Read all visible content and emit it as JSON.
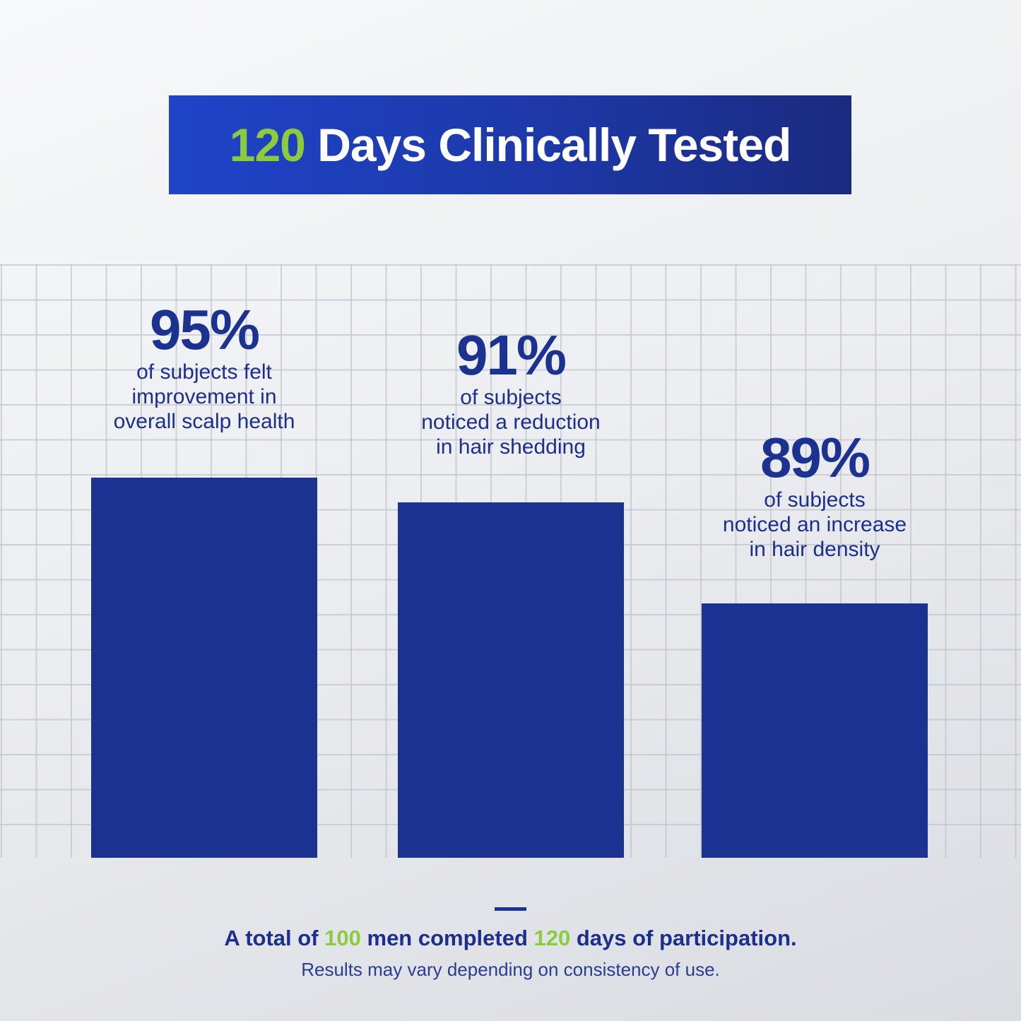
{
  "title": {
    "highlight": "120",
    "rest": " Days Clinically Tested"
  },
  "chart_data": {
    "type": "bar",
    "categories": [
      "of subjects felt improvement in overall scalp health",
      "of subjects noticed a reduction in hair shedding",
      "of subjects noticed an increase in hair density"
    ],
    "values": [
      95,
      91,
      89
    ],
    "value_labels": [
      "95%",
      "91%",
      "89%"
    ],
    "desc_lines": [
      [
        "of subjects felt",
        "improvement in",
        "overall scalp health"
      ],
      [
        "of subjects",
        "noticed a reduction",
        "in hair shedding"
      ],
      [
        "of subjects",
        "noticed an increase",
        "in hair density"
      ]
    ],
    "grid": true,
    "bar_color": "#1c3290"
  },
  "footer": {
    "p1": "A total of ",
    "n1": "100",
    "p2": " men completed ",
    "n2": "120",
    "p3": " days of participation.",
    "note": "Results may vary depending on consistency of use."
  },
  "colors": {
    "accent_green": "#8ccc3c",
    "brand_blue": "#1c3290"
  }
}
